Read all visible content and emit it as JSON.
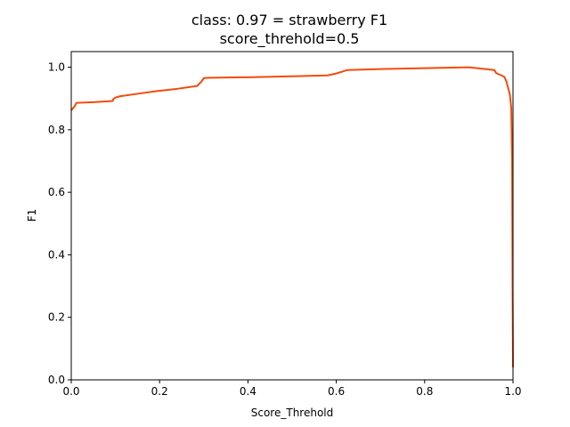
{
  "chart_data": {
    "type": "line",
    "title_line1": "class: 0.97 = strawberry F1",
    "title_line2": "score_threhold=0.5",
    "xlabel": "Score_Threhold",
    "ylabel": "F1",
    "xlim": [
      0.0,
      1.0
    ],
    "ylim": [
      0.0,
      1.05
    ],
    "xticks": [
      0.0,
      0.2,
      0.4,
      0.6,
      0.8,
      1.0
    ],
    "xtick_labels": [
      "0.0",
      "0.2",
      "0.4",
      "0.6",
      "0.8",
      "1.0"
    ],
    "yticks": [
      0.0,
      0.2,
      0.4,
      0.6,
      0.8,
      1.0
    ],
    "ytick_labels": [
      "0.0",
      "0.2",
      "0.4",
      "0.6",
      "0.8",
      "1.0"
    ],
    "grid": false,
    "legend": "none",
    "series": [
      {
        "color": "#f24b0c",
        "x": [
          0.0,
          0.006,
          0.012,
          0.05,
          0.094,
          0.095,
          0.1,
          0.11,
          0.15,
          0.19,
          0.24,
          0.285,
          0.295,
          0.3,
          0.305,
          0.4,
          0.5,
          0.58,
          0.6,
          0.625,
          0.7,
          0.8,
          0.9,
          0.958,
          0.962,
          0.98,
          0.985,
          0.99,
          0.993,
          0.996,
          0.998,
          0.999,
          1.0
        ],
        "y": [
          0.862,
          0.872,
          0.886,
          0.888,
          0.892,
          0.898,
          0.903,
          0.907,
          0.915,
          0.923,
          0.931,
          0.94,
          0.955,
          0.965,
          0.966,
          0.968,
          0.971,
          0.974,
          0.98,
          0.991,
          0.994,
          0.997,
          1.0,
          0.991,
          0.981,
          0.97,
          0.955,
          0.928,
          0.912,
          0.87,
          0.7,
          0.3,
          0.04
        ]
      }
    ]
  }
}
